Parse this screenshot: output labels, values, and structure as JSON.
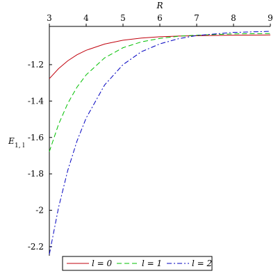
{
  "chart_data": {
    "type": "line",
    "xlabel": "R",
    "ylabel": "E",
    "ylabel_sub": "1, l",
    "x": [
      3,
      3.25,
      3.5,
      3.75,
      4,
      4.5,
      5,
      5.5,
      6,
      6.5,
      7,
      8,
      9
    ],
    "series": [
      {
        "name": "l = 0",
        "color": "#c0000c",
        "dash": "solid",
        "values": [
          -1.277,
          -1.222,
          -1.179,
          -1.146,
          -1.121,
          -1.087,
          -1.066,
          -1.054,
          -1.047,
          -1.043,
          -1.041,
          -1.038,
          -1.037
        ]
      },
      {
        "name": "l = 1",
        "color": "#00c000",
        "dash": "dash",
        "values": [
          -1.678,
          -1.528,
          -1.413,
          -1.324,
          -1.256,
          -1.163,
          -1.107,
          -1.075,
          -1.056,
          -1.044,
          -1.038,
          -1.031,
          -1.029
        ]
      },
      {
        "name": "l = 2",
        "color": "#0000c0",
        "dash": "dashdot",
        "values": [
          -2.242,
          -1.985,
          -1.781,
          -1.62,
          -1.493,
          -1.312,
          -1.2,
          -1.129,
          -1.086,
          -1.058,
          -1.04,
          -1.023,
          -1.017
        ]
      }
    ],
    "xlim": [
      3,
      9
    ],
    "xticks": [
      3,
      4,
      5,
      6,
      7,
      8,
      9
    ],
    "ylim": [
      -2.25,
      -0.99
    ],
    "yticks": [
      -1.2,
      -1.4,
      -1.6,
      -1.8,
      -2,
      -2.2
    ],
    "legend": "bottom"
  }
}
